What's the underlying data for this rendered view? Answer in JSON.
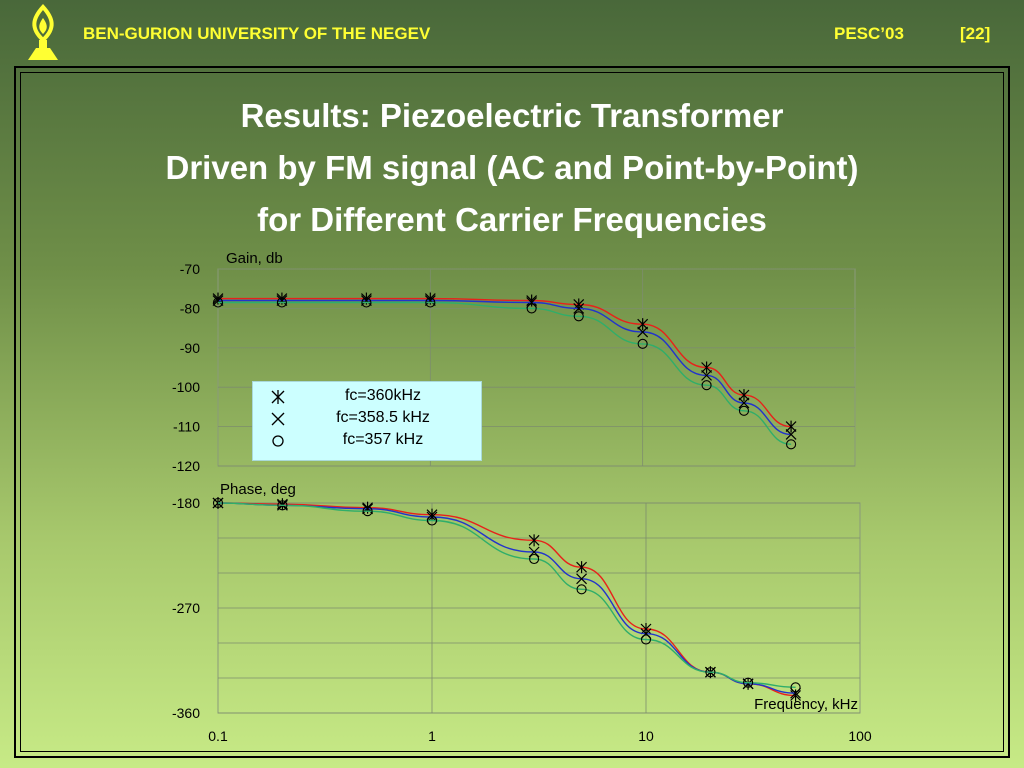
{
  "header": {
    "university": "BEN-GURION UNIVERSITY OF THE NEGEV",
    "conference": "PESC’03",
    "slide_number": "[22]"
  },
  "title": {
    "line1": "Results: Piezoelectric Transformer",
    "line2": "Driven by FM signal (AC and Point-by-Point)",
    "line3": "for Different Carrier Frequencies"
  },
  "colors": {
    "fc360": "#e8211a",
    "fc358_5": "#2233cc",
    "fc357": "#2fae6a",
    "legend_bg": "#ccffff",
    "header_text": "#ffff33"
  },
  "chart_data": [
    {
      "type": "line",
      "ylabel": "Gain, db",
      "xscale": "log",
      "xlim": [
        0.1,
        100
      ],
      "ylim": [
        -120,
        -70
      ],
      "yticks": [
        "-70",
        "-80",
        "-90",
        "-100",
        "-110",
        "-120"
      ],
      "grid": true,
      "legend_position": "bottom-left",
      "series": [
        {
          "name": "fc=360kHz",
          "marker": "asterisk",
          "x": [
            0.1,
            0.2,
            0.5,
            1,
            3,
            5,
            10,
            20,
            30,
            50
          ],
          "y": [
            -77.5,
            -77.5,
            -77.5,
            -77.5,
            -78,
            -79,
            -84,
            -95,
            -102,
            -110
          ]
        },
        {
          "name": "fc=358.5 kHz",
          "marker": "x",
          "x": [
            0.1,
            0.2,
            0.5,
            1,
            3,
            5,
            10,
            20,
            30,
            50
          ],
          "y": [
            -78,
            -78,
            -78,
            -78,
            -78.5,
            -80,
            -86,
            -97,
            -104,
            -112
          ]
        },
        {
          "name": "fc=357 kHz",
          "marker": "circle",
          "x": [
            0.1,
            0.2,
            0.5,
            1,
            3,
            5,
            10,
            20,
            30,
            50
          ],
          "y": [
            -78.5,
            -78.5,
            -78.5,
            -78.5,
            -80,
            -82,
            -89,
            -99.5,
            -106,
            -114.5
          ]
        }
      ]
    },
    {
      "type": "line",
      "ylabel": "Phase, deg",
      "xlabel": "Frequency, kHz",
      "xscale": "log",
      "xlim": [
        0.1,
        100
      ],
      "ylim": [
        -360,
        -180
      ],
      "yticks": [
        "-180",
        "-270",
        "-360"
      ],
      "xticks": [
        "0.1",
        "1",
        "10",
        "100"
      ],
      "grid": true,
      "series": [
        {
          "name": "fc=360kHz",
          "marker": "asterisk",
          "x": [
            0.1,
            0.2,
            0.5,
            1,
            3,
            5,
            10,
            20,
            30,
            50
          ],
          "y": [
            -180,
            -181,
            -184,
            -190,
            -212,
            -235,
            -288,
            -325,
            -335,
            -345
          ]
        },
        {
          "name": "fc=358.5 kHz",
          "marker": "x",
          "x": [
            0.1,
            0.2,
            0.5,
            1,
            3,
            5,
            10,
            20,
            30,
            50
          ],
          "y": [
            -180,
            -182,
            -185,
            -192,
            -222,
            -245,
            -292,
            -325,
            -335,
            -343
          ]
        },
        {
          "name": "fc=357 kHz",
          "marker": "circle",
          "x": [
            0.1,
            0.2,
            0.5,
            1,
            3,
            5,
            10,
            20,
            30,
            50
          ],
          "y": [
            -180,
            -182,
            -187,
            -195,
            -228,
            -254,
            -297,
            -325,
            -334,
            -338
          ]
        }
      ]
    }
  ]
}
